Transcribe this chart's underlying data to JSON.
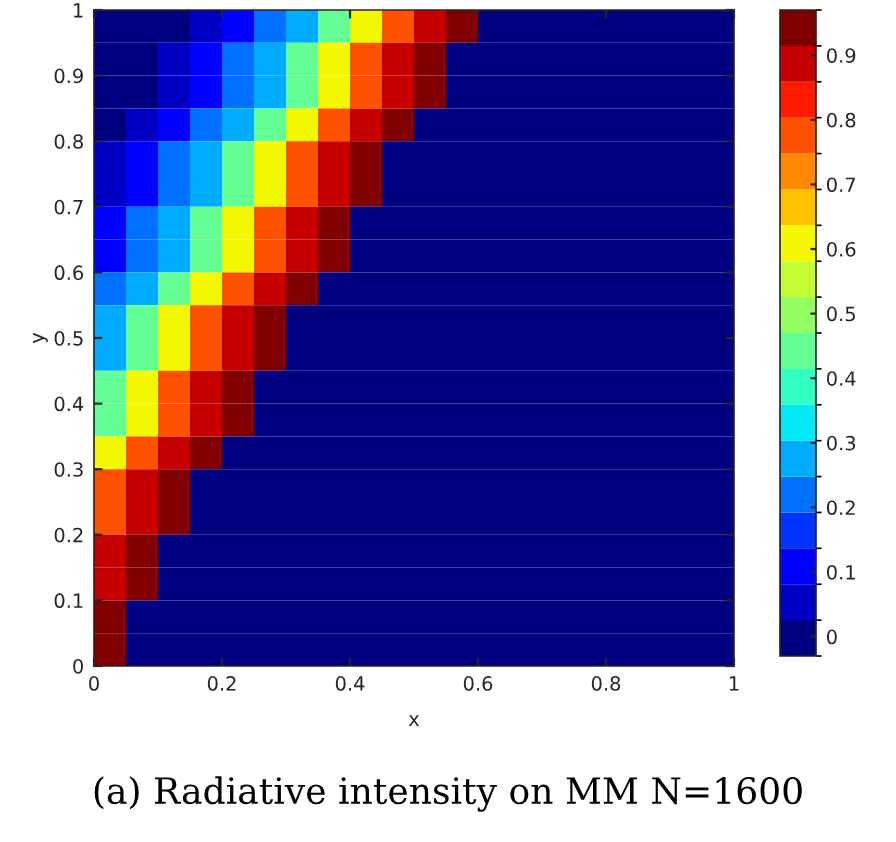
{
  "chart_data": {
    "type": "heatmap",
    "xlabel": "x",
    "ylabel": "y",
    "annotations": [
      "(a) Radiative intensity on MM N=1600"
    ],
    "x": [
      0.025,
      0.075,
      0.125,
      0.175,
      0.225,
      0.275,
      0.325,
      0.375,
      0.425,
      0.475,
      0.525,
      0.575,
      0.625,
      0.675,
      0.725,
      0.775,
      0.825,
      0.875,
      0.925,
      0.975
    ],
    "y": [
      0.975,
      0.925,
      0.875,
      0.825,
      0.775,
      0.725,
      0.675,
      0.625,
      0.575,
      0.525,
      0.475,
      0.425,
      0.375,
      0.325,
      0.275,
      0.225,
      0.175,
      0.125,
      0.075,
      0.025
    ],
    "cells": [
      [
        0,
        0,
        0,
        0.03,
        0.1,
        0.2,
        0.3,
        0.45,
        0.6,
        0.75,
        0.9,
        0.97,
        0,
        0,
        0,
        0,
        0,
        0,
        0,
        0
      ],
      [
        0,
        0,
        0.03,
        0.1,
        0.2,
        0.3,
        0.45,
        0.6,
        0.75,
        0.9,
        0.97,
        0,
        0,
        0,
        0,
        0,
        0,
        0,
        0,
        0
      ],
      [
        0,
        0,
        0.03,
        0.1,
        0.2,
        0.3,
        0.45,
        0.6,
        0.75,
        0.9,
        0.97,
        0,
        0,
        0,
        0,
        0,
        0,
        0,
        0,
        0
      ],
      [
        0,
        0.03,
        0.1,
        0.2,
        0.3,
        0.45,
        0.6,
        0.75,
        0.9,
        0.97,
        0,
        0,
        0,
        0,
        0,
        0,
        0,
        0,
        0,
        0
      ],
      [
        0.03,
        0.1,
        0.2,
        0.3,
        0.45,
        0.6,
        0.75,
        0.9,
        0.97,
        0,
        0,
        0,
        0,
        0,
        0,
        0,
        0,
        0,
        0,
        0
      ],
      [
        0.03,
        0.1,
        0.2,
        0.3,
        0.45,
        0.6,
        0.75,
        0.9,
        0.97,
        0,
        0,
        0,
        0,
        0,
        0,
        0,
        0,
        0,
        0,
        0
      ],
      [
        0.1,
        0.2,
        0.3,
        0.45,
        0.6,
        0.75,
        0.9,
        0.97,
        0,
        0,
        0,
        0,
        0,
        0,
        0,
        0,
        0,
        0,
        0,
        0
      ],
      [
        0.1,
        0.2,
        0.3,
        0.45,
        0.6,
        0.75,
        0.9,
        0.97,
        0,
        0,
        0,
        0,
        0,
        0,
        0,
        0,
        0,
        0,
        0,
        0
      ],
      [
        0.2,
        0.3,
        0.45,
        0.6,
        0.75,
        0.9,
        0.97,
        0,
        0,
        0,
        0,
        0,
        0,
        0,
        0,
        0,
        0,
        0,
        0,
        0
      ],
      [
        0.3,
        0.45,
        0.6,
        0.75,
        0.9,
        0.97,
        0,
        0,
        0,
        0,
        0,
        0,
        0,
        0,
        0,
        0,
        0,
        0,
        0,
        0
      ],
      [
        0.3,
        0.45,
        0.6,
        0.75,
        0.9,
        0.97,
        0,
        0,
        0,
        0,
        0,
        0,
        0,
        0,
        0,
        0,
        0,
        0,
        0,
        0
      ],
      [
        0.45,
        0.6,
        0.75,
        0.9,
        0.97,
        0,
        0,
        0,
        0,
        0,
        0,
        0,
        0,
        0,
        0,
        0,
        0,
        0,
        0,
        0
      ],
      [
        0.45,
        0.6,
        0.75,
        0.9,
        0.97,
        0,
        0,
        0,
        0,
        0,
        0,
        0,
        0,
        0,
        0,
        0,
        0,
        0,
        0,
        0
      ],
      [
        0.6,
        0.75,
        0.9,
        0.97,
        0,
        0,
        0,
        0,
        0,
        0,
        0,
        0,
        0,
        0,
        0,
        0,
        0,
        0,
        0,
        0
      ],
      [
        0.75,
        0.9,
        0.97,
        0,
        0,
        0,
        0,
        0,
        0,
        0,
        0,
        0,
        0,
        0,
        0,
        0,
        0,
        0,
        0,
        0
      ],
      [
        0.75,
        0.9,
        0.97,
        0,
        0,
        0,
        0,
        0,
        0,
        0,
        0,
        0,
        0,
        0,
        0,
        0,
        0,
        0,
        0,
        0
      ],
      [
        0.9,
        0.97,
        0,
        0,
        0,
        0,
        0,
        0,
        0,
        0,
        0,
        0,
        0,
        0,
        0,
        0,
        0,
        0,
        0,
        0
      ],
      [
        0.9,
        0.97,
        0,
        0,
        0,
        0,
        0,
        0,
        0,
        0,
        0,
        0,
        0,
        0,
        0,
        0,
        0,
        0,
        0,
        0
      ],
      [
        0.97,
        0,
        0,
        0,
        0,
        0,
        0,
        0,
        0,
        0,
        0,
        0,
        0,
        0,
        0,
        0,
        0,
        0,
        0,
        0
      ],
      [
        0.97,
        0,
        0,
        0,
        0,
        0,
        0,
        0,
        0,
        0,
        0,
        0,
        0,
        0,
        0,
        0,
        0,
        0,
        0,
        0
      ]
    ],
    "xlim": [
      0,
      1
    ],
    "ylim": [
      0,
      1
    ],
    "xticks": [
      0,
      0.2,
      0.4,
      0.6,
      0.8,
      1
    ],
    "yticks": [
      0,
      0.1,
      0.2,
      0.3,
      0.4,
      0.5,
      0.6,
      0.7,
      0.8,
      0.9,
      1
    ],
    "clim": [
      -0.03,
      0.97
    ],
    "cticks": [
      0,
      0.1,
      0.2,
      0.3,
      0.4,
      0.5,
      0.6,
      0.7,
      0.8,
      0.9
    ]
  }
}
